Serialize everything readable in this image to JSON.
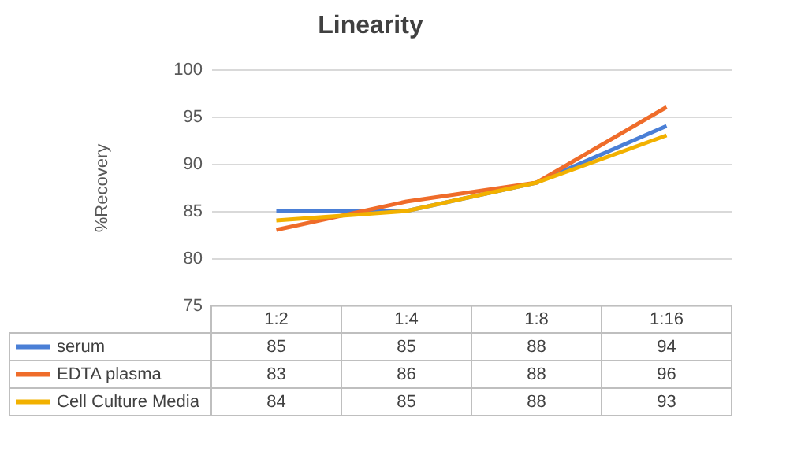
{
  "chart_data": {
    "type": "line",
    "title": "Linearity",
    "ylabel": "%Recovery",
    "categories": [
      "1:2",
      "1:4",
      "1:8",
      "1:16"
    ],
    "series": [
      {
        "name": "serum",
        "color": "#4a7fd6",
        "values": [
          85,
          85,
          88,
          94
        ]
      },
      {
        "name": "EDTA plasma",
        "color": "#ef6c2a",
        "values": [
          83,
          86,
          88,
          96
        ]
      },
      {
        "name": "Cell Culture Media",
        "color": "#f2b100",
        "values": [
          84,
          85,
          88,
          93
        ]
      }
    ],
    "ylim": [
      75,
      100
    ],
    "yticks": [
      75,
      80,
      85,
      90,
      95,
      100
    ],
    "grid": "y",
    "legend": "bottom",
    "data_labels": true
  }
}
